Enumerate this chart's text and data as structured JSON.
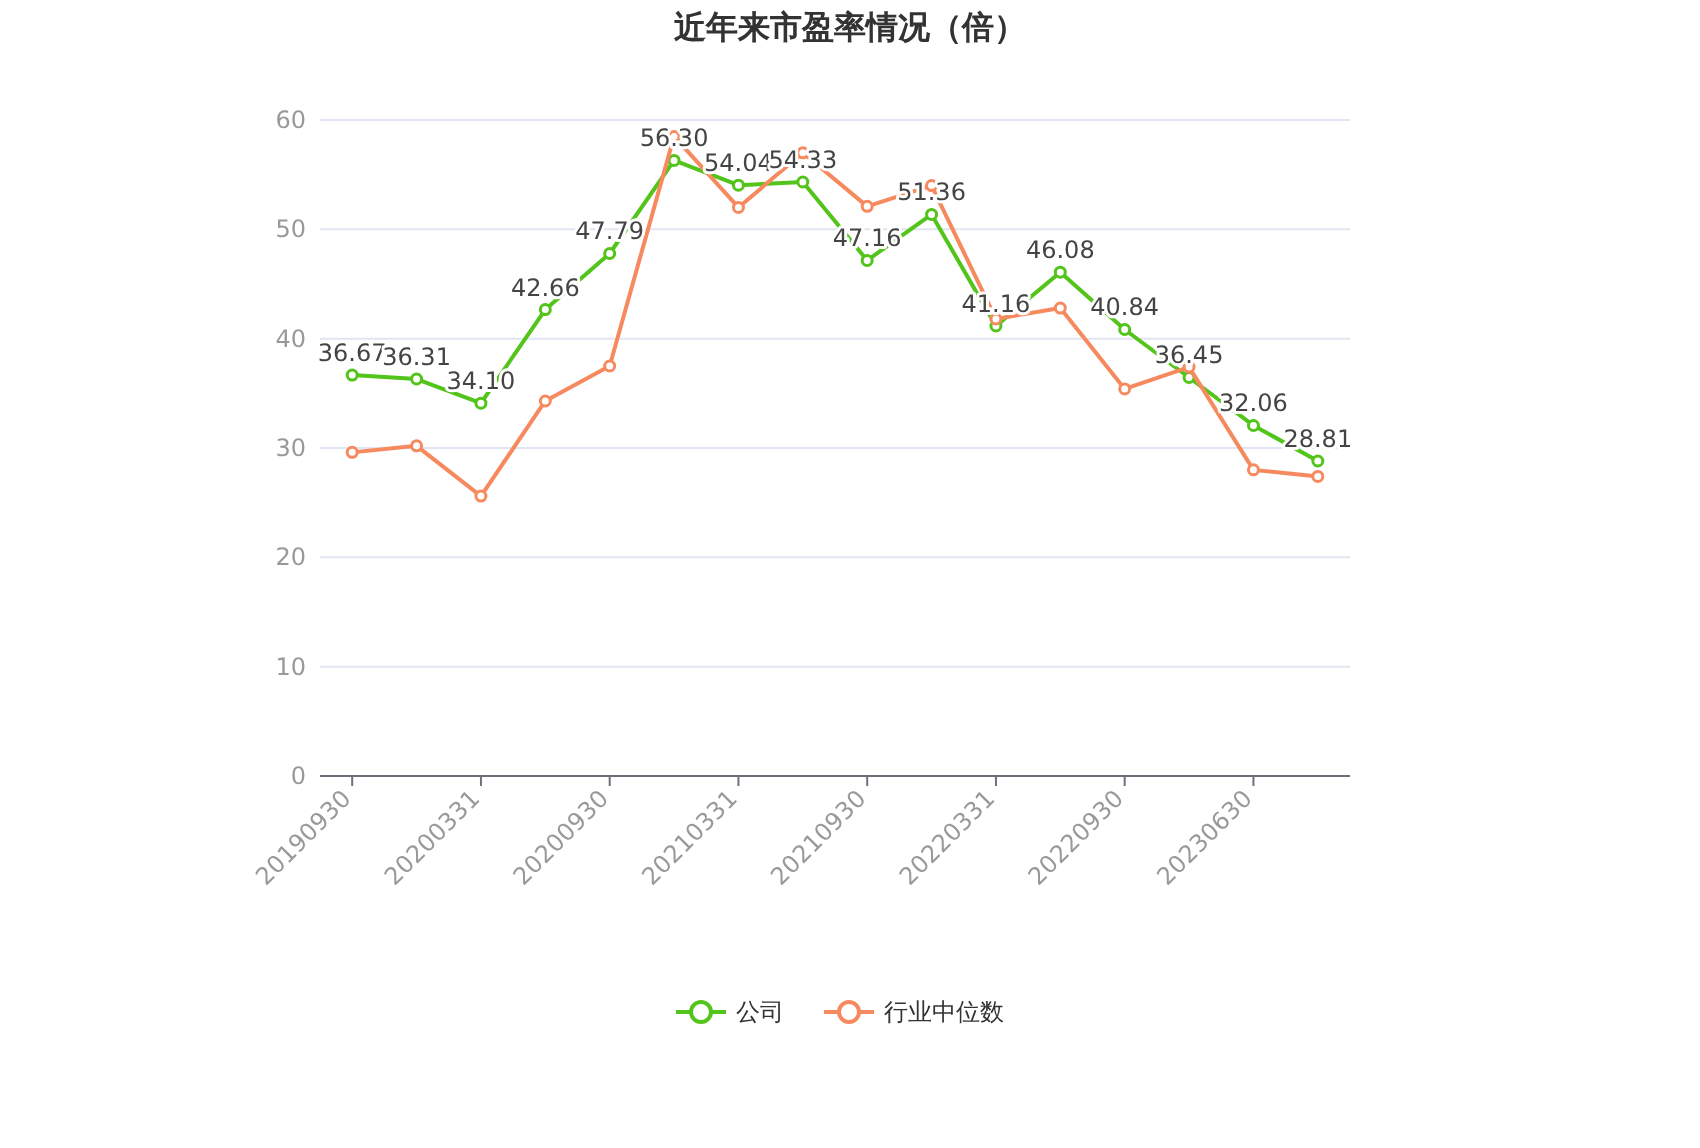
{
  "chart_data": {
    "type": "line",
    "title": "近年来市盈率情况（倍）",
    "categories": [
      "20190930",
      null,
      "20200331",
      null,
      "20200930",
      null,
      "20210331",
      null,
      "20210930",
      null,
      "20220331",
      null,
      "20220930",
      null,
      "20230630",
      null
    ],
    "series": [
      {
        "name": "公司",
        "color": "#52c41a",
        "values": [
          36.67,
          36.31,
          34.1,
          42.66,
          47.79,
          56.3,
          54.04,
          54.33,
          47.16,
          51.36,
          41.16,
          46.08,
          40.84,
          36.45,
          32.06,
          28.81
        ],
        "value_labels": [
          "36.67",
          "36.31",
          "34.10",
          "42.66",
          "47.79",
          "56.30",
          "54.04",
          "54.33",
          "47.16",
          "51.36",
          "41.16",
          "46.08",
          "40.84",
          "36.45",
          "32.06",
          "28.81"
        ]
      },
      {
        "name": "行业中位数",
        "color": "#f7895f",
        "values": [
          29.6,
          30.2,
          25.6,
          34.3,
          37.5,
          58.5,
          52.0,
          57.0,
          52.1,
          54.0,
          41.8,
          42.8,
          35.4,
          37.4,
          28.0,
          27.4
        ]
      }
    ],
    "ylim": [
      0,
      60
    ],
    "yticks": [
      0,
      10,
      20,
      30,
      40,
      50,
      60
    ],
    "grid": "y",
    "legend": "bottom",
    "marker": "circle"
  }
}
